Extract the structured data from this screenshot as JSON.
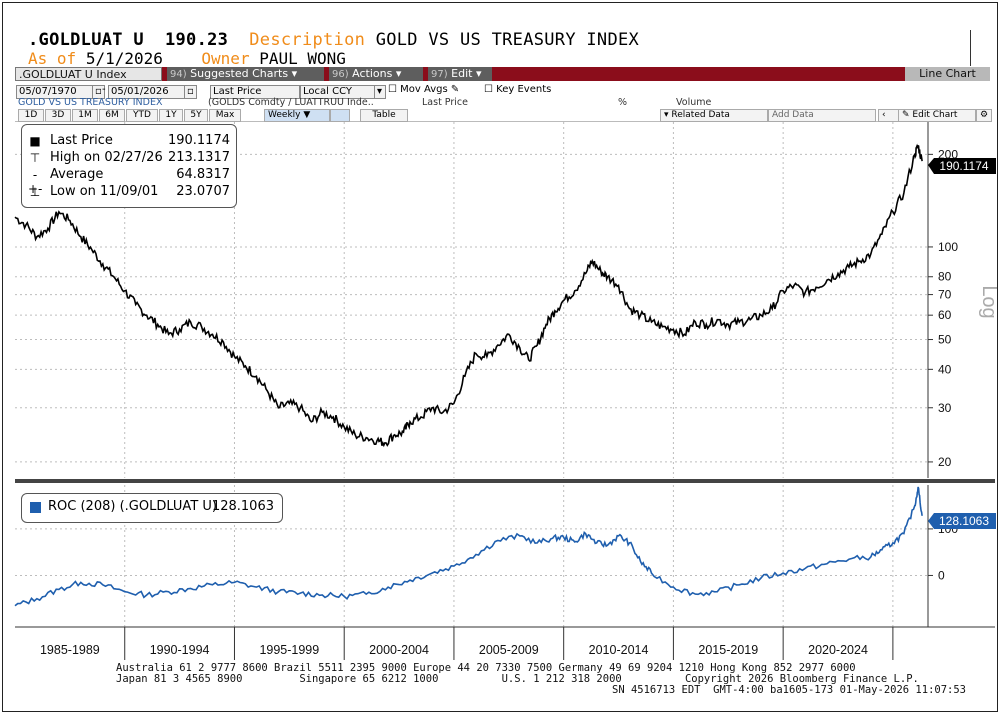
{
  "header": {
    "ticker": ".GOLDLUAT U",
    "price": "190.23",
    "desc_label": "Description",
    "desc_value": "GOLD VS US TREASURY INDEX",
    "asof_label": "As of",
    "asof_value": "5/1/2026",
    "owner_label": "Owner",
    "owner_value": "PAUL WONG"
  },
  "toolbar": {
    "security": ".GOLDLUAT U Index",
    "suggested_num": "94)",
    "suggested_label": "Suggested Charts",
    "actions_num": "96)",
    "actions_label": "Actions",
    "edit_num": "97)",
    "edit_label": "Edit",
    "chart_type": "Line Chart",
    "accent": "#8b0d1b"
  },
  "controls": {
    "start_date": "05/07/1970",
    "end_date": "05/01/2026",
    "field": "Last Price",
    "currency": "Local CCY",
    "mov_avgs": "Mov Avgs",
    "key_events": "Key Events",
    "series_name": "GOLD VS US TREASURY INDEX",
    "series_formula": "(GOLDS Comdty / LUATTRUU Inde..",
    "series_field": "Last Price",
    "pct": "%",
    "volume": "Volume",
    "periods": [
      "1D",
      "3D",
      "1M",
      "6M",
      "YTD",
      "1Y",
      "5Y",
      "Max"
    ],
    "frequency": "Weekly",
    "table": "Table",
    "related": "Related Data",
    "add_data": "Add Data",
    "edit_chart": "Edit Chart"
  },
  "legend": {
    "last_label": "Last Price",
    "last_value": "190.1174",
    "high_label": "High on 02/27/26",
    "high_value": "213.1317",
    "avg_label": "Average",
    "avg_value": "64.8317",
    "low_label": "Low on 11/09/01",
    "low_value": "23.0707",
    "roc_label": "ROC (208) (.GOLDLUAT U)",
    "roc_value": "128.1063"
  },
  "chart_data": [
    {
      "type": "line",
      "title": "GOLD VS US TREASURY INDEX",
      "scale": "log",
      "ylabel": "Log",
      "yticks": [
        20,
        30,
        40,
        50,
        60,
        70,
        80,
        100,
        200
      ],
      "ylim": [
        18,
        240
      ],
      "x_axis_periods": [
        "1985-1989",
        "1990-1994",
        "1995-1999",
        "2000-2004",
        "2005-2009",
        "2010-2014",
        "2015-2019",
        "2020-2024"
      ],
      "xlim": [
        1985.0,
        2026.6
      ],
      "last_value_label": "190.1174",
      "color": "#000000",
      "series": [
        {
          "name": "Last Price",
          "x": [
            1985.0,
            1985.5,
            1986.0,
            1986.5,
            1987.0,
            1987.5,
            1988.0,
            1988.5,
            1989.0,
            1989.5,
            1990.0,
            1990.5,
            1991.0,
            1991.5,
            1992.0,
            1992.5,
            1993.0,
            1993.5,
            1994.0,
            1994.5,
            1995.0,
            1995.5,
            1996.0,
            1996.5,
            1997.0,
            1997.5,
            1998.0,
            1998.5,
            1999.0,
            1999.5,
            2000.0,
            2000.5,
            2001.0,
            2001.5,
            2001.85,
            2002.3,
            2002.7,
            2003.0,
            2003.5,
            2004.0,
            2004.5,
            2005.0,
            2005.5,
            2006.0,
            2006.5,
            2007.0,
            2007.5,
            2008.0,
            2008.4,
            2008.8,
            2009.2,
            2009.6,
            2010.0,
            2010.5,
            2011.0,
            2011.3,
            2011.7,
            2012.0,
            2012.5,
            2013.0,
            2013.5,
            2014.0,
            2014.5,
            2015.0,
            2015.5,
            2016.0,
            2016.5,
            2017.0,
            2017.5,
            2018.0,
            2018.5,
            2019.0,
            2019.5,
            2020.0,
            2020.5,
            2021.0,
            2021.5,
            2022.0,
            2022.5,
            2023.0,
            2023.5,
            2024.0,
            2024.5,
            2025.0,
            2025.5,
            2026.0,
            2026.15,
            2026.33
          ],
          "values": [
            125,
            118,
            108,
            115,
            130,
            122,
            108,
            98,
            88,
            80,
            72,
            65,
            60,
            56,
            52,
            54,
            57,
            55,
            52,
            49,
            44,
            41,
            38,
            34,
            30,
            31,
            30,
            27,
            29,
            28,
            26,
            24.5,
            24,
            23.5,
            23.07,
            24.5,
            25,
            27,
            28,
            30,
            29,
            31,
            38,
            45,
            44,
            48,
            52,
            47,
            43,
            48,
            56,
            62,
            67,
            72,
            82,
            90,
            83,
            80,
            75,
            63,
            60,
            57,
            55,
            54,
            52,
            57,
            56,
            58,
            56,
            57,
            58,
            60,
            63,
            72,
            75,
            71,
            74,
            78,
            82,
            86,
            90,
            95,
            110,
            130,
            150,
            200,
            213.13,
            190.12
          ]
        }
      ]
    },
    {
      "type": "line",
      "title": "ROC (208) (.GOLDLUAT U)",
      "yticks": [
        0,
        100
      ],
      "ylim": [
        -100,
        190
      ],
      "xlim": [
        1985.0,
        2026.6
      ],
      "last_value_label": "128.1063",
      "color": "#1f5fae",
      "series": [
        {
          "name": "ROC (208) (.GOLDLUAT U)",
          "x": [
            1985.0,
            1986.0,
            1987.0,
            1988.0,
            1989.0,
            1990.0,
            1991.0,
            1992.0,
            1993.0,
            1994.0,
            1995.0,
            1996.0,
            1997.0,
            1998.0,
            1999.0,
            2000.0,
            2001.0,
            2002.0,
            2003.0,
            2004.0,
            2005.0,
            2006.0,
            2007.0,
            2008.0,
            2008.8,
            2009.5,
            2010.0,
            2010.5,
            2011.0,
            2011.5,
            2012.0,
            2012.5,
            2013.0,
            2013.5,
            2014.0,
            2015.0,
            2016.0,
            2017.0,
            2018.0,
            2019.0,
            2020.0,
            2021.0,
            2022.0,
            2023.0,
            2024.0,
            2024.5,
            2025.0,
            2025.5,
            2026.0,
            2026.15,
            2026.33
          ],
          "values": [
            -65,
            -50,
            -30,
            -15,
            -20,
            -35,
            -42,
            -35,
            -28,
            -20,
            -15,
            -25,
            -35,
            -38,
            -42,
            -45,
            -40,
            -25,
            -10,
            5,
            20,
            45,
            75,
            85,
            70,
            80,
            82,
            72,
            90,
            70,
            65,
            85,
            70,
            30,
            5,
            -25,
            -40,
            -35,
            -20,
            -5,
            5,
            15,
            25,
            35,
            40,
            55,
            70,
            90,
            150,
            190,
            128.1
          ]
        }
      ]
    }
  ],
  "footer": {
    "line1": "Australia 61 2 9777 8600 Brazil 5511 2395 9000 Europe 44 20 7330 7500 Germany 49 69 9204 1210 Hong Kong 852 2977 6000",
    "line2": "Japan 81 3 4565 8900         Singapore 65 6212 1000          U.S. 1 212 318 2000          Copyright 2026 Bloomberg Finance L.P.",
    "line3": "SN 4516713 EDT  GMT-4:00 ba1605-173 01-May-2026 11:07:53"
  }
}
